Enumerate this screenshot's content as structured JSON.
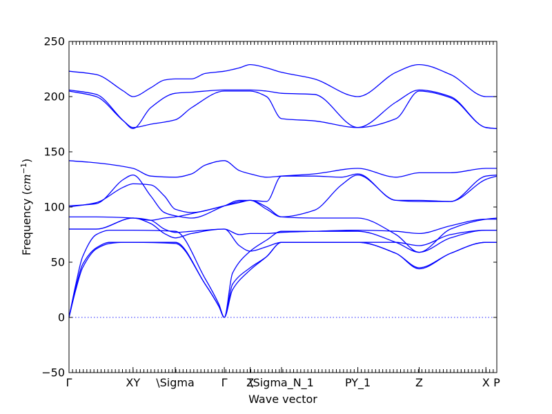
{
  "chart_data": {
    "type": "line",
    "title": "",
    "xlabel": "Wave vector",
    "ylabel_text": "Frequency (",
    "ylabel_unit": "cm",
    "ylabel_exp": "−1",
    "ylabel_close": ")",
    "ylim": [
      -50,
      250
    ],
    "yticks": [
      -50,
      0,
      50,
      100,
      150,
      200,
      250
    ],
    "grid": false,
    "legend": "none",
    "line_color": "#0000ff",
    "zero_line": 0,
    "xlim": [
      0,
      3.14
    ],
    "kpoints": [
      {
        "label": "Γ",
        "x": 0
      },
      {
        "label": "XY",
        "x": 0.47
      },
      {
        "label": "\\Sigma",
        "x": 0.78
      },
      {
        "label": "Γ",
        "x": 1.14
      },
      {
        "label": "Z",
        "x": 1.33
      },
      {
        "label": "\\Sigma_N_1",
        "x": 1.56
      },
      {
        "label": "PY_1",
        "x": 2.12
      },
      {
        "label": "Z",
        "x": 2.57
      },
      {
        "label": "X",
        "x": 3.06
      },
      {
        "label": "P",
        "x": 3.14
      }
    ],
    "series": [
      {
        "x": [
          0,
          0.05,
          0.1,
          0.2,
          0.3,
          0.4,
          0.47,
          0.78,
          1.0,
          1.1,
          1.14,
          1.2,
          1.33,
          1.45,
          1.56,
          1.8,
          2.12,
          2.4,
          2.57,
          2.8,
          3.06,
          3.14
        ],
        "y": [
          0,
          25,
          45,
          62,
          67,
          68,
          68,
          68,
          30,
          10,
          0,
          30,
          45,
          55,
          68,
          68,
          68,
          58,
          45,
          58,
          68,
          68
        ]
      },
      {
        "x": [
          0,
          0.05,
          0.1,
          0.2,
          0.3,
          0.4,
          0.47,
          0.78,
          1.0,
          1.1,
          1.14,
          1.2,
          1.33,
          1.45,
          1.56,
          1.8,
          2.12,
          2.4,
          2.57,
          2.8,
          3.06,
          3.14
        ],
        "y": [
          0,
          27,
          48,
          63,
          68,
          68,
          68,
          67,
          30,
          10,
          0,
          25,
          43,
          55,
          68,
          68,
          68,
          58,
          44,
          58,
          68,
          68
        ]
      },
      {
        "x": [
          0,
          0.05,
          0.1,
          0.2,
          0.3,
          0.4,
          0.47,
          0.78,
          1.0,
          1.1,
          1.14,
          1.2,
          1.33,
          1.45,
          1.56,
          1.8,
          2.12,
          2.4,
          2.57,
          2.8,
          3.06,
          3.14
        ],
        "y": [
          0,
          30,
          55,
          75,
          79,
          79,
          79,
          78,
          35,
          12,
          0,
          40,
          60,
          70,
          78,
          78,
          78,
          68,
          59,
          72,
          79,
          79
        ]
      },
      {
        "x": [
          0,
          0.2,
          0.47,
          0.6,
          0.7,
          0.78,
          0.9,
          1.14,
          1.25,
          1.33,
          1.45,
          1.56,
          1.8,
          2.12,
          2.4,
          2.57,
          2.8,
          3.06,
          3.14
        ],
        "y": [
          80,
          80,
          90,
          85,
          76,
          72,
          76,
          80,
          65,
          60,
          64,
          68,
          68,
          68,
          68,
          65,
          75,
          79,
          79
        ]
      },
      {
        "x": [
          0,
          0.2,
          0.47,
          0.6,
          0.7,
          0.78,
          0.9,
          1.14,
          1.25,
          1.33,
          1.45,
          1.56,
          1.8,
          2.12,
          2.4,
          2.57,
          2.8,
          3.06,
          3.14
        ],
        "y": [
          80,
          80,
          90,
          88,
          80,
          77,
          78,
          80,
          75,
          76,
          76,
          77,
          78,
          79,
          78,
          76,
          83,
          89,
          89
        ]
      },
      {
        "x": [
          0,
          0.2,
          0.47,
          0.6,
          0.7,
          0.78,
          0.9,
          1.14,
          1.25,
          1.33,
          1.45,
          1.56,
          1.8,
          2.12,
          2.4,
          2.57,
          2.8,
          3.06,
          3.14
        ],
        "y": [
          91,
          91,
          90,
          88,
          90,
          91,
          94,
          101,
          105,
          106,
          100,
          91,
          90,
          90,
          75,
          59,
          80,
          89,
          90
        ]
      },
      {
        "x": [
          0,
          0.2,
          0.4,
          0.47,
          0.6,
          0.7,
          0.78,
          0.9,
          1.14,
          1.25,
          1.33,
          1.45,
          1.56,
          1.8,
          2.0,
          2.12,
          2.4,
          2.57,
          2.8,
          3.06,
          3.14
        ],
        "y": [
          101,
          103,
          125,
          129,
          110,
          95,
          92,
          90,
          101,
          106,
          106,
          98,
          91,
          97,
          120,
          129,
          106,
          105,
          105,
          128,
          129
        ]
      },
      {
        "x": [
          0,
          0.2,
          0.4,
          0.47,
          0.6,
          0.7,
          0.78,
          0.9,
          1.14,
          1.25,
          1.33,
          1.45,
          1.56,
          1.8,
          2.0,
          2.12,
          2.4,
          2.57,
          2.8,
          3.06,
          3.14
        ],
        "y": [
          100,
          104,
          118,
          121,
          120,
          110,
          98,
          95,
          101,
          104,
          106,
          105,
          128,
          128,
          127,
          130,
          106,
          106,
          105,
          125,
          128
        ]
      },
      {
        "x": [
          0,
          0.2,
          0.47,
          0.6,
          0.78,
          0.9,
          1.0,
          1.14,
          1.25,
          1.33,
          1.45,
          1.56,
          1.8,
          2.12,
          2.4,
          2.57,
          2.8,
          3.06,
          3.14
        ],
        "y": [
          142,
          140,
          135,
          128,
          127,
          130,
          138,
          142,
          133,
          130,
          127,
          128,
          130,
          135,
          127,
          131,
          131,
          135,
          135
        ]
      },
      {
        "x": [
          0,
          0.2,
          0.4,
          0.47,
          0.6,
          0.78,
          0.9,
          1.14,
          1.25,
          1.33,
          1.45,
          1.56,
          1.8,
          2.12,
          2.4,
          2.57,
          2.8,
          3.06,
          3.14
        ],
        "y": [
          205,
          200,
          178,
          172,
          175,
          179,
          190,
          205,
          205,
          205,
          200,
          180,
          178,
          172,
          180,
          205,
          199,
          172,
          171
        ]
      },
      {
        "x": [
          0,
          0.2,
          0.4,
          0.47,
          0.6,
          0.78,
          0.9,
          1.14,
          1.25,
          1.33,
          1.45,
          1.56,
          1.8,
          2.12,
          2.4,
          2.57,
          2.8,
          3.06,
          3.14
        ],
        "y": [
          206,
          202,
          178,
          171,
          190,
          203,
          204,
          206,
          206,
          206,
          205,
          203,
          202,
          172,
          195,
          206,
          200,
          172,
          171
        ]
      },
      {
        "x": [
          0,
          0.2,
          0.4,
          0.47,
          0.6,
          0.7,
          0.78,
          0.9,
          1.0,
          1.14,
          1.25,
          1.33,
          1.45,
          1.56,
          1.8,
          2.12,
          2.4,
          2.57,
          2.8,
          3.06,
          3.14
        ],
        "y": [
          223,
          220,
          205,
          200,
          208,
          215,
          216,
          216,
          221,
          223,
          226,
          229,
          226,
          222,
          216,
          200,
          222,
          229,
          220,
          200,
          200
        ]
      }
    ]
  }
}
